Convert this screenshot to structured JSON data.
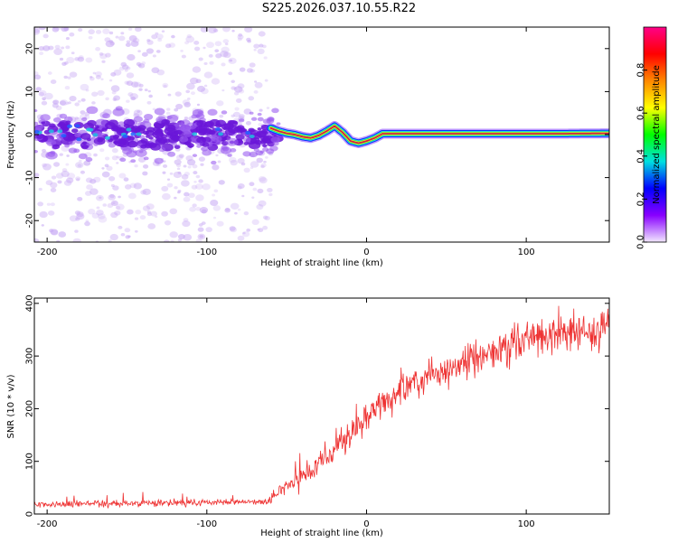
{
  "figure_title": "S225.2026.037.10.55.R22",
  "colors": {
    "snr_line": "#ee3333",
    "ridge": "#cc2244",
    "blob_dark": "#6a16d8",
    "blob_light": "#c7a8f4",
    "background": "#ffffff"
  },
  "colorbar": {
    "label": "Normalized spectral amplitude",
    "range": [
      0,
      1
    ],
    "ticks": [
      0.0,
      0.2,
      0.4,
      0.6,
      0.8
    ],
    "tick_labels": [
      "0.0",
      "0.2",
      "0.4",
      "0.6",
      "0.8"
    ],
    "colors": [
      "#ff0088",
      "#ff0000",
      "#ff8800",
      "#ffff00",
      "#00ff00",
      "#00e0e0",
      "#0000ff",
      "#8800ff",
      "#f2e8ff"
    ]
  },
  "chart_data": [
    {
      "type": "heatmap",
      "name": "spectrogram",
      "xlabel": "Height of straight line (km)",
      "ylabel": "Frequency (Hz)",
      "xlim": [
        -208,
        152
      ],
      "ylim": [
        -25,
        25
      ],
      "xticks": [
        -200,
        -100,
        0,
        100
      ],
      "yticks": [
        -20,
        -10,
        0,
        10,
        20
      ],
      "noise_region_x": [
        -208,
        -60
      ],
      "ridge": {
        "x": [
          -60,
          -55,
          -50,
          -45,
          -40,
          -35,
          -30,
          -25,
          -20,
          -15,
          -10,
          -5,
          0,
          5,
          10,
          15,
          30,
          60,
          90,
          120,
          152
        ],
        "freq": [
          1.5,
          0.8,
          0.3,
          0.0,
          -0.5,
          -0.8,
          -0.2,
          0.8,
          2.0,
          0.5,
          -1.5,
          -2.0,
          -1.5,
          -0.8,
          0.2,
          0.2,
          0.2,
          0.2,
          0.2,
          0.2,
          0.3
        ]
      }
    },
    {
      "type": "line",
      "name": "snr",
      "xlabel": "Height of straight line (km)",
      "ylabel": "SNR (10 * v/v)",
      "xlim": [
        -208,
        152
      ],
      "ylim": [
        0,
        410
      ],
      "xticks": [
        -200,
        -100,
        0,
        100
      ],
      "yticks": [
        0,
        100,
        200,
        300,
        400
      ],
      "series": [
        {
          "name": "SNR",
          "x": [
            -208,
            -180,
            -150,
            -120,
            -90,
            -70,
            -62,
            -55,
            -45,
            -35,
            -25,
            -15,
            -5,
            5,
            15,
            25,
            40,
            55,
            70,
            85,
            100,
            115,
            130,
            145,
            152
          ],
          "y": [
            18,
            19,
            20,
            21,
            22,
            23,
            25,
            45,
            65,
            85,
            110,
            135,
            165,
            200,
            225,
            245,
            260,
            285,
            300,
            315,
            330,
            340,
            345,
            350,
            360
          ]
        }
      ]
    }
  ]
}
